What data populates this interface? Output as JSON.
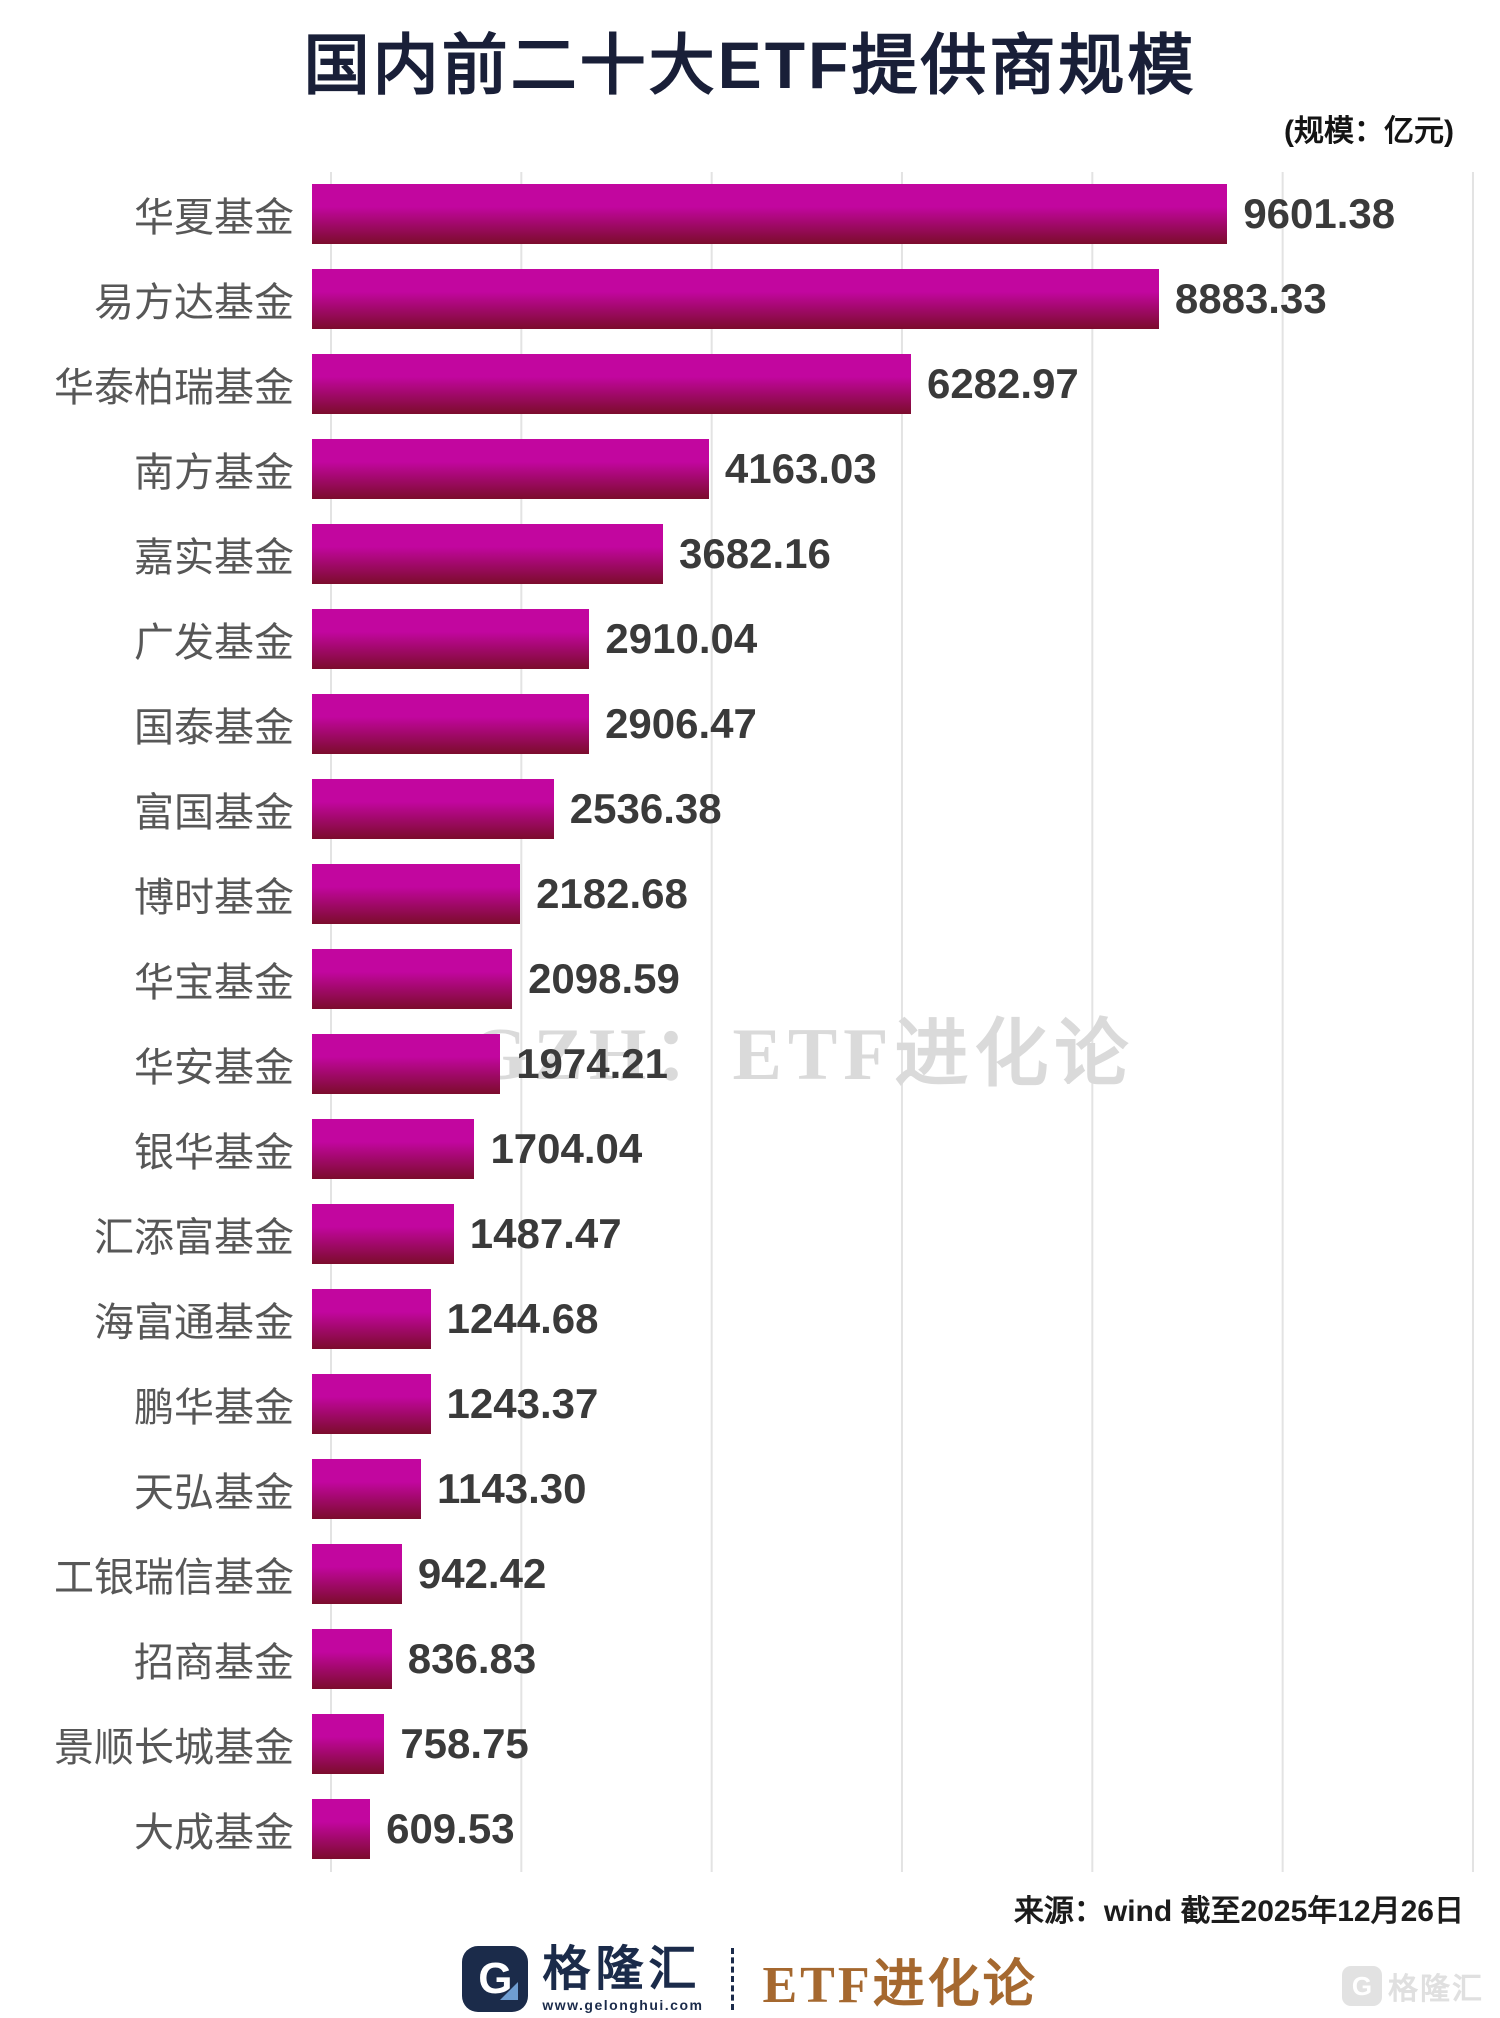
{
  "title": "国内前二十大ETF提供商规模",
  "unit_note": "(规模：亿元)",
  "watermark": "GZH：ETF进化论",
  "source_note": "来源：wind  截至2025年12月26日",
  "footer": {
    "brand_g": "G",
    "brand_name": "格隆汇",
    "brand_site": "www.gelonghui.com",
    "account_name": "ETF进化论",
    "corner_g": "G",
    "corner_text": "格隆汇"
  },
  "colors": {
    "title_navy": "#191f38",
    "brand_navy": "#1b2b4a",
    "brand_bronze": "#a5682f",
    "bar_gradient_top": "#c2069f",
    "bar_gradient_bottom": "#7b0c2c",
    "gridline": "#e3e3e3",
    "label_gray": "#575757",
    "value_dark": "#3a3a3a"
  },
  "chart_data": {
    "type": "bar",
    "orientation": "horizontal",
    "title": "国内前二十大ETF提供商规模",
    "unit": "亿元",
    "xlim": [
      0,
      12000
    ],
    "grid_interval": 2000,
    "grid": true,
    "legend": false,
    "categories": [
      "华夏基金",
      "易方达基金",
      "华泰柏瑞基金",
      "南方基金",
      "嘉实基金",
      "广发基金",
      "国泰基金",
      "富国基金",
      "博时基金",
      "华宝基金",
      "华安基金",
      "银华基金",
      "汇添富基金",
      "海富通基金",
      "鹏华基金",
      "天弘基金",
      "工银瑞信基金",
      "招商基金",
      "景顺长城基金",
      "大成基金"
    ],
    "values": [
      9601.38,
      8883.33,
      6282.97,
      4163.03,
      3682.16,
      2910.04,
      2906.47,
      2536.38,
      2182.68,
      2098.59,
      1974.21,
      1704.04,
      1487.47,
      1244.68,
      1243.37,
      1143.3,
      942.42,
      836.83,
      758.75,
      609.53
    ]
  }
}
